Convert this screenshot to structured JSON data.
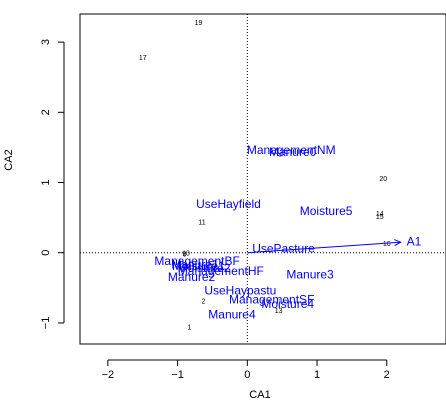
{
  "chart_data": {
    "type": "scatter",
    "title": "",
    "xlabel": "CA1",
    "ylabel": "CA2",
    "xlim": [
      -2.4,
      2.85
    ],
    "ylim": [
      -1.3,
      3.4
    ],
    "xticks": [
      -2,
      -1,
      0,
      1,
      2
    ],
    "yticks": [
      -1,
      0,
      1,
      2,
      3
    ],
    "reference_lines": {
      "x": 0,
      "y": 0,
      "style": "dotted"
    },
    "colors": {
      "sites": "#000000",
      "variables": "#0000ff",
      "arrow": "#0000ff"
    },
    "sites": [
      {
        "label": "19",
        "x": -0.7,
        "y": 3.27
      },
      {
        "label": "17",
        "x": -1.5,
        "y": 2.77
      },
      {
        "label": "20",
        "x": 1.95,
        "y": 1.05
      },
      {
        "label": "14",
        "x": 1.9,
        "y": 0.55
      },
      {
        "label": "15",
        "x": 1.9,
        "y": 0.51
      },
      {
        "label": "11",
        "x": -0.65,
        "y": 0.43
      },
      {
        "label": "16",
        "x": 2.0,
        "y": 0.12
      },
      {
        "label": "6",
        "x": -0.9,
        "y": -0.03
      },
      {
        "label": "10",
        "x": -0.88,
        "y": -0.01
      },
      {
        "label": "13",
        "x": 0.45,
        "y": -0.83
      },
      {
        "label": "2",
        "x": -0.63,
        "y": -0.7
      },
      {
        "label": "1",
        "x": -0.83,
        "y": -1.07
      }
    ],
    "variables": [
      {
        "label": "ManagementNM",
        "x": 0.63,
        "y": 1.45
      },
      {
        "label": "Manure0",
        "x": 0.65,
        "y": 1.42
      },
      {
        "label": "UseHayfield",
        "x": -0.27,
        "y": 0.68
      },
      {
        "label": "Moisture5",
        "x": 1.13,
        "y": 0.58
      },
      {
        "label": "UsePasture",
        "x": 0.52,
        "y": 0.05
      },
      {
        "label": "ManagementBF",
        "x": -0.72,
        "y": -0.13
      },
      {
        "label": "Manure1",
        "x": -0.75,
        "y": -0.18
      },
      {
        "label": "Manure2",
        "x": -0.8,
        "y": -0.36
      },
      {
        "label": "ManagementHF",
        "x": -0.38,
        "y": -0.27
      },
      {
        "label": "Manure3",
        "x": 0.9,
        "y": -0.32
      },
      {
        "label": "UseHaypastu",
        "x": -0.1,
        "y": -0.55
      },
      {
        "label": "ManagementSF",
        "x": 0.35,
        "y": -0.68
      },
      {
        "label": "Moisture4",
        "x": 0.58,
        "y": -0.74
      },
      {
        "label": "Manure4",
        "x": -0.22,
        "y": -0.89
      },
      {
        "label": "Moisture1",
        "x": -0.7,
        "y": -0.2
      },
      {
        "label": "Moisture2",
        "x": -0.62,
        "y": -0.23
      }
    ],
    "vectors": [
      {
        "label": "A1",
        "x": 2.2,
        "y": 0.15
      }
    ]
  }
}
